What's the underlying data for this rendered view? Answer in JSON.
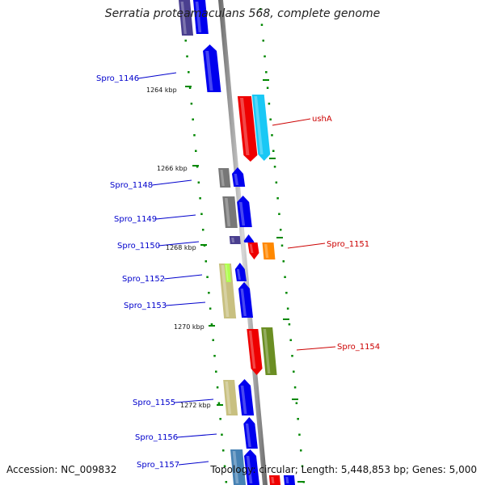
{
  "title": "Serratia proteamaculans 568, complete genome",
  "accession": "Accession: NC_009832",
  "summary": "Topology: circular; Length: 5,448,853 bp; Genes: 5,000",
  "kbp_markers": [
    "1264 kbp",
    "1266 kbp",
    "1268 kbp",
    "1270 kbp",
    "1272 kbp"
  ],
  "gene_labels": {
    "left": [
      "Spro_1146",
      "Spro_1148",
      "Spro_1149",
      "Spro_1150",
      "Spro_1152",
      "Spro_1153",
      "Spro_1155",
      "Spro_1156",
      "Spro_1157"
    ],
    "right": [
      "ushA",
      "Spro_1151",
      "Spro_1154"
    ]
  },
  "colors": {
    "left_label": "#0000cc",
    "right_label": "#cc0000",
    "backbone": "#888888",
    "tick": "#008800",
    "blue": "#0000ee",
    "red": "#ee0000",
    "cyan": "#1ac8f5",
    "orange": "#ff8800",
    "olive": "#6b8e23",
    "gray": "#777777",
    "khaki": "#c8c080",
    "indigo": "#4a3f8f",
    "steel": "#4682b4",
    "lime": "#b0ff50"
  }
}
